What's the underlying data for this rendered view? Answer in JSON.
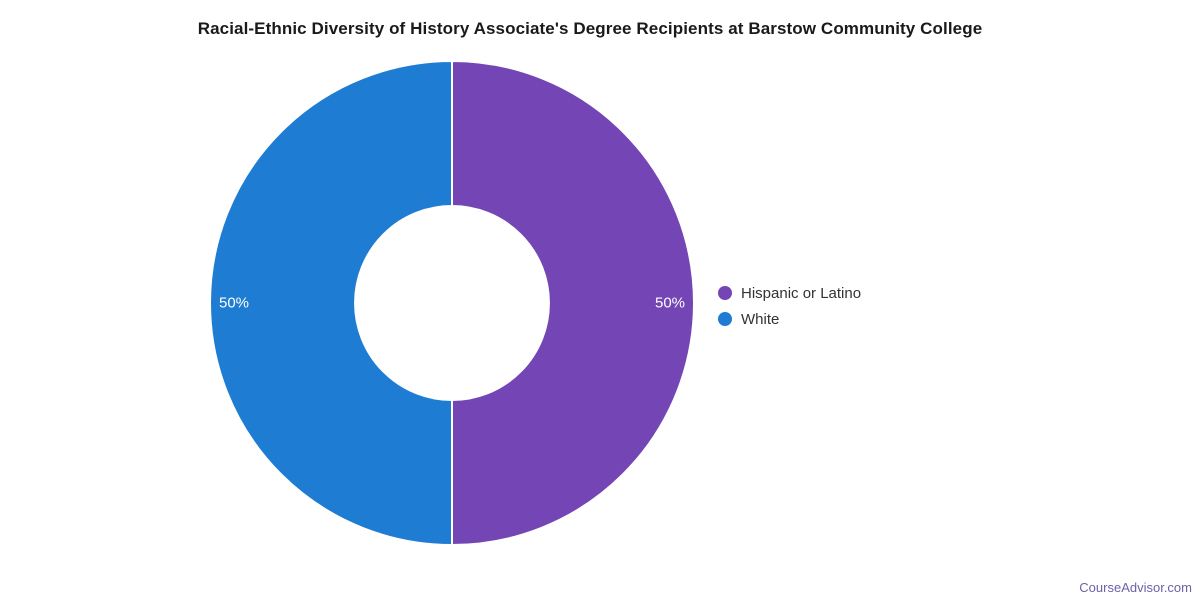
{
  "page": {
    "background": "#ffffff"
  },
  "chart_data": {
    "type": "pie",
    "subtype": "donut",
    "title": "Racial-Ethnic Diversity of History Associate's Degree Recipients at Barstow Community College",
    "slices": [
      {
        "name": "Hispanic or Latino",
        "value": 50,
        "label": "50%",
        "color": "#7345b5"
      },
      {
        "name": "White",
        "value": 50,
        "label": "50%",
        "color": "#1e7dd2"
      }
    ],
    "total": 100,
    "start_angle_deg": 0,
    "direction": "clockwise",
    "legend_position": "right",
    "slice_label_color": "#ffffff",
    "slice_border_color": "#ffffff",
    "title_color": "#1a1a1a",
    "legend_text_color": "#333333"
  },
  "footer": {
    "link_text": "CourseAdvisor.com",
    "link_color": "#6e61a9"
  }
}
